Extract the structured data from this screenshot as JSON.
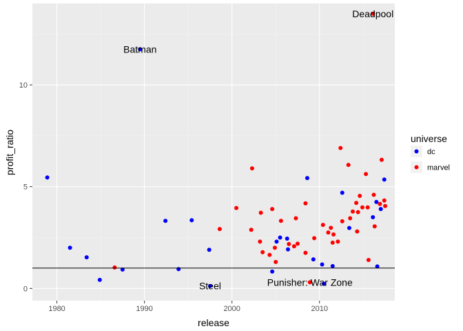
{
  "chart_data": {
    "type": "scatter",
    "xlabel": "release",
    "ylabel": "profit_ratio",
    "xlim": [
      1977.2,
      2018.6
    ],
    "ylim": [
      -0.6,
      14.0
    ],
    "x_ticks": [
      1980,
      1990,
      2000,
      2010
    ],
    "y_ticks": [
      0,
      5,
      10
    ],
    "grid": true,
    "reference_line_y": 1,
    "colors": {
      "dc": "#0000ff",
      "marvel": "#ff0000",
      "panel": "#ebebeb",
      "grid_major": "#ffffff",
      "grid_minor": "#f4f4f4",
      "hline": "#000000"
    },
    "legend": {
      "title": "universe",
      "position": "right",
      "entries": [
        {
          "key": "dc",
          "label": "dc"
        },
        {
          "key": "marvel",
          "label": "marvel"
        }
      ]
    },
    "series": [
      {
        "name": "dc",
        "points": [
          [
            1978.9,
            5.45
          ],
          [
            1981.5,
            2.0
          ],
          [
            1983.4,
            1.53
          ],
          [
            1984.9,
            0.42
          ],
          [
            1987.5,
            0.93
          ],
          [
            1989.5,
            11.75
          ],
          [
            1992.4,
            3.32
          ],
          [
            1993.9,
            0.95
          ],
          [
            1995.4,
            3.35
          ],
          [
            1997.4,
            1.9
          ],
          [
            1997.5,
            0.12
          ],
          [
            2004.6,
            0.83
          ],
          [
            2005.1,
            2.3
          ],
          [
            2005.5,
            2.5
          ],
          [
            2006.3,
            2.45
          ],
          [
            2006.4,
            1.92
          ],
          [
            2008.6,
            5.42
          ],
          [
            2009.3,
            1.43
          ],
          [
            2010.3,
            1.18
          ],
          [
            2010.5,
            0.23
          ],
          [
            2011.5,
            1.1
          ],
          [
            2012.6,
            4.7
          ],
          [
            2013.4,
            2.97
          ],
          [
            2016.1,
            3.5
          ],
          [
            2016.6,
            1.08
          ],
          [
            2016.5,
            4.25
          ],
          [
            2017.0,
            3.9
          ],
          [
            2017.4,
            5.35
          ]
        ]
      },
      {
        "name": "marvel",
        "points": [
          [
            1986.6,
            1.03
          ],
          [
            1998.6,
            2.92
          ],
          [
            2000.5,
            3.95
          ],
          [
            2002.3,
            5.9
          ],
          [
            2002.2,
            2.88
          ],
          [
            2003.2,
            2.3
          ],
          [
            2003.3,
            3.72
          ],
          [
            2003.5,
            1.78
          ],
          [
            2004.3,
            1.65
          ],
          [
            2004.6,
            3.9
          ],
          [
            2004.9,
            2.0
          ],
          [
            2005.0,
            1.3
          ],
          [
            2005.6,
            3.32
          ],
          [
            2006.5,
            2.18
          ],
          [
            2007.1,
            2.07
          ],
          [
            2007.3,
            3.45
          ],
          [
            2007.5,
            2.2
          ],
          [
            2008.4,
            4.18
          ],
          [
            2008.4,
            1.75
          ],
          [
            2008.9,
            0.3
          ],
          [
            2009.4,
            2.47
          ],
          [
            2010.4,
            3.12
          ],
          [
            2011.0,
            2.75
          ],
          [
            2011.3,
            2.98
          ],
          [
            2011.5,
            2.25
          ],
          [
            2011.6,
            2.65
          ],
          [
            2012.1,
            2.3
          ],
          [
            2012.4,
            6.9
          ],
          [
            2012.6,
            3.3
          ],
          [
            2013.3,
            6.07
          ],
          [
            2013.5,
            3.45
          ],
          [
            2013.8,
            3.78
          ],
          [
            2014.2,
            4.2
          ],
          [
            2014.3,
            2.8
          ],
          [
            2014.4,
            3.75
          ],
          [
            2014.6,
            4.55
          ],
          [
            2014.9,
            3.98
          ],
          [
            2015.3,
            5.62
          ],
          [
            2015.5,
            3.98
          ],
          [
            2015.6,
            1.4
          ],
          [
            2016.1,
            13.5
          ],
          [
            2016.2,
            4.6
          ],
          [
            2016.3,
            3.05
          ],
          [
            2016.9,
            4.15
          ],
          [
            2017.1,
            6.32
          ],
          [
            2017.4,
            4.32
          ],
          [
            2017.5,
            4.05
          ]
        ]
      }
    ],
    "annotations": [
      {
        "label": "Batman",
        "x": 1989.5,
        "y": 11.75
      },
      {
        "label": "Deadpool",
        "x": 2016.1,
        "y": 13.5
      },
      {
        "label": "Steel",
        "x": 1997.5,
        "y": 0.12
      },
      {
        "label": "Punisher: War Zone",
        "x": 2008.9,
        "y": 0.3
      }
    ]
  }
}
